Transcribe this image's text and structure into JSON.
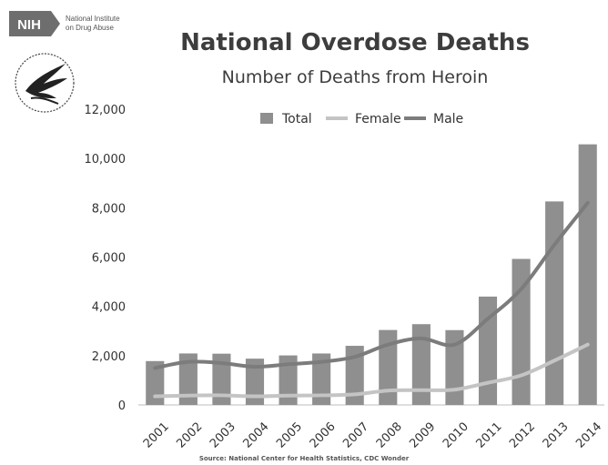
{
  "logo": {
    "nih_text": "NIH",
    "org_line1": "National Institute",
    "org_line2": "on Drug Abuse",
    "seal_icon": "hhs-eagle-seal-icon"
  },
  "chart_data": {
    "type": "bar",
    "title": "National Overdose Deaths",
    "subtitle": "Number of Deaths from Heroin",
    "categories": [
      "2001",
      "2002",
      "2003",
      "2004",
      "2005",
      "2006",
      "2007",
      "2008",
      "2009",
      "2010",
      "2011",
      "2012",
      "2013",
      "2014"
    ],
    "ylim": [
      0,
      12000
    ],
    "yticks": [
      0,
      2000,
      4000,
      6000,
      8000,
      10000,
      12000
    ],
    "ytick_labels": [
      "0",
      "2,000",
      "4,000",
      "6,000",
      "8,000",
      "10,000",
      "12,000"
    ],
    "grid": false,
    "legend_position": "top",
    "series": [
      {
        "name": "Total",
        "kind": "bar",
        "color": "#8f8f8f",
        "values": [
          1779,
          2089,
          2080,
          1878,
          2009,
          2088,
          2399,
          3041,
          3278,
          3036,
          4397,
          5925,
          8257,
          10574
        ]
      },
      {
        "name": "Female",
        "kind": "line",
        "color": "#c4c4c4",
        "values": [
          350,
          380,
          390,
          350,
          380,
          390,
          430,
          580,
          600,
          620,
          900,
          1200,
          1800,
          2450
        ]
      },
      {
        "name": "Male",
        "kind": "line",
        "color": "#7c7c7c",
        "values": [
          1500,
          1750,
          1700,
          1550,
          1650,
          1750,
          1950,
          2450,
          2700,
          2450,
          3500,
          4700,
          6500,
          8200
        ]
      }
    ]
  },
  "source_text": "Source: National Center for Health Statistics, CDC Wonder"
}
